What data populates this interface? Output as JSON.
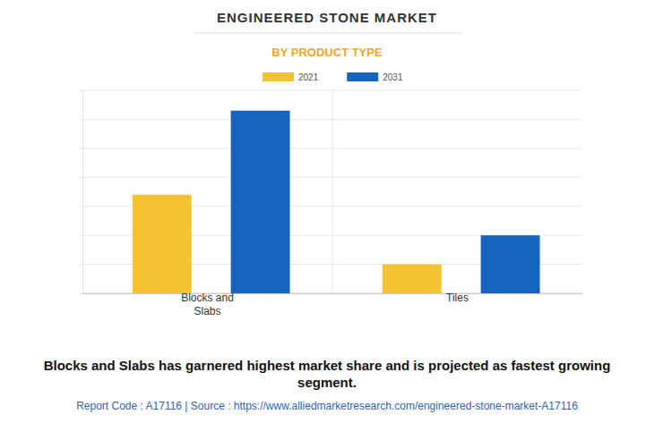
{
  "chart_data": {
    "type": "bar",
    "title": "ENGINEERED STONE MARKET",
    "subtitle": "BY PRODUCT TYPE",
    "categories": [
      "Blocks and Slabs",
      "Tiles"
    ],
    "series": [
      {
        "name": "2021",
        "color": "#f4c430",
        "values": [
          3.4,
          1.0
        ]
      },
      {
        "name": "2031",
        "color": "#1565c0",
        "values": [
          6.3,
          2.0
        ]
      }
    ],
    "ylim": [
      0,
      7
    ],
    "yticks": [
      0,
      1,
      2,
      3,
      4,
      5,
      6,
      7
    ],
    "grid": true,
    "legend": "top",
    "tick_labels": "x",
    "annotations": [
      "Blocks and Slabs has garnered highest market share and is projected as fastest growing segment.",
      "Report Code : A17116 | Source : https://www.alliedmarketresearch.com/engineered-stone-market-A17116"
    ]
  }
}
